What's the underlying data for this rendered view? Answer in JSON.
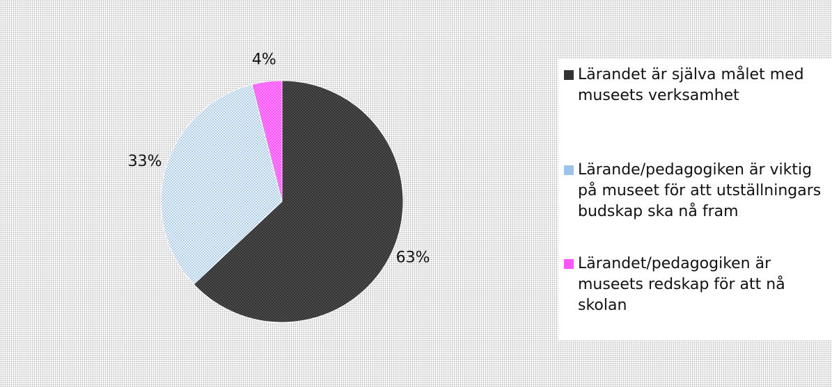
{
  "chart_data": {
    "type": "pie",
    "categories": [
      "Lärandet är själva målet med museets verksamhet",
      "Lärande/pedagogiken är viktig på museet för att utställningars budskap ska nå fram",
      "Lärandet/pedagogiken är museets redskap för att nå skolan"
    ],
    "values": [
      63,
      33,
      4
    ],
    "value_labels": [
      "63%",
      "33%",
      "4%"
    ],
    "colors": [
      "#333333",
      "#9cc3ec",
      "#ff55ff"
    ],
    "legend": "right"
  }
}
